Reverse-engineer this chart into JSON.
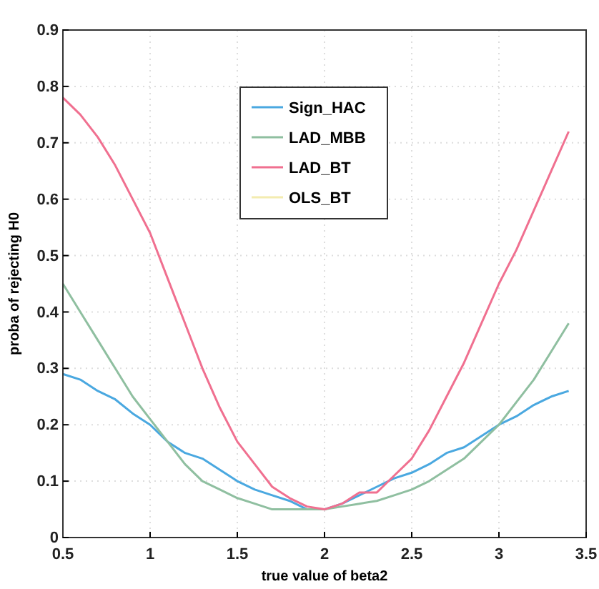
{
  "chart_data": {
    "type": "line",
    "xlabel": "true value of beta2",
    "ylabel": "proba of rejecting H0",
    "x": [
      0.5,
      0.6,
      0.7,
      0.8,
      0.9,
      1.0,
      1.1,
      1.2,
      1.3,
      1.4,
      1.5,
      1.6,
      1.7,
      1.8,
      1.9,
      2.0,
      2.1,
      2.2,
      2.3,
      2.4,
      2.5,
      2.6,
      2.7,
      2.8,
      2.9,
      3.0,
      3.1,
      3.2,
      3.3,
      3.4
    ],
    "series": [
      {
        "name": "Sign_HAC",
        "color": "#4aa8e0",
        "values": [
          0.29,
          0.28,
          0.26,
          0.245,
          0.22,
          0.2,
          0.17,
          0.15,
          0.14,
          0.12,
          0.1,
          0.085,
          0.075,
          0.065,
          0.05,
          0.05,
          0.06,
          0.075,
          0.09,
          0.105,
          0.115,
          0.13,
          0.15,
          0.16,
          0.18,
          0.2,
          0.215,
          0.235,
          0.25,
          0.26
        ]
      },
      {
        "name": "LAD_MBB",
        "color": "#8fbfa0",
        "values": [
          0.45,
          0.4,
          0.35,
          0.3,
          0.25,
          0.21,
          0.17,
          0.13,
          0.1,
          0.085,
          0.07,
          0.06,
          0.05,
          0.05,
          0.05,
          0.05,
          0.055,
          0.06,
          0.065,
          0.075,
          0.085,
          0.1,
          0.12,
          0.14,
          0.17,
          0.2,
          0.24,
          0.28,
          0.33,
          0.38
        ]
      },
      {
        "name": "LAD_BT",
        "color": "#f07090",
        "values": [
          0.78,
          0.75,
          0.71,
          0.66,
          0.6,
          0.54,
          0.46,
          0.38,
          0.3,
          0.23,
          0.17,
          0.13,
          0.09,
          0.07,
          0.055,
          0.05,
          0.06,
          0.08,
          0.08,
          0.11,
          0.14,
          0.19,
          0.25,
          0.31,
          0.38,
          0.45,
          0.51,
          0.58,
          0.65,
          0.72
        ]
      },
      {
        "name": "OLS_BT",
        "color": "#f3ecb0",
        "values": [
          null,
          null,
          null,
          null,
          null,
          null,
          null,
          null,
          null,
          null,
          null,
          null,
          null,
          null,
          null,
          null,
          null,
          null,
          null,
          null,
          null,
          null,
          null,
          null,
          null,
          null,
          null,
          null,
          null,
          null
        ]
      }
    ],
    "xlim": [
      0.5,
      3.5
    ],
    "xticks": [
      0.5,
      1,
      1.5,
      2,
      2.5,
      3,
      3.5
    ],
    "ylim": [
      0,
      0.9
    ],
    "yticks": [
      0,
      0.1,
      0.2,
      0.3,
      0.4,
      0.5,
      0.6,
      0.7,
      0.8,
      0.9
    ],
    "grid": true,
    "legend": "top",
    "marker": "none",
    "line_style": "solid"
  }
}
